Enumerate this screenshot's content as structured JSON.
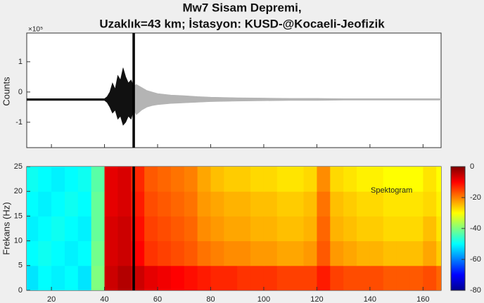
{
  "chart_data": [
    {
      "type": "area",
      "title": "Mw7 Sisam Depremi,",
      "subtitle": "Uzaklık=43 km; İstasyon: KUSD-@Kocaeli-Jeofizik",
      "ylabel": "Counts",
      "y_multiplier_label": "×10⁵",
      "xlim": [
        10.7,
        166.8
      ],
      "xticks": [
        20,
        40,
        60,
        80,
        100,
        120,
        140,
        160
      ],
      "ylim": [
        -1.84,
        1.95
      ],
      "yticks": [
        -1,
        0,
        1
      ],
      "marker_x": 51,
      "series": [
        {
          "color": "#111111",
          "x": [
            10.7,
            40,
            41,
            42,
            43,
            44,
            45,
            46,
            47,
            48,
            49,
            50,
            51
          ],
          "upper": [
            -0.22,
            -0.22,
            -0.15,
            0,
            0.3,
            0.1,
            0.55,
            0.4,
            0.8,
            0.5,
            0.3,
            0.4,
            0.2
          ],
          "lower": [
            -0.28,
            -0.28,
            -0.35,
            -0.5,
            -0.7,
            -0.6,
            -0.9,
            -0.8,
            -1.1,
            -1.0,
            -0.8,
            -0.9,
            -0.6
          ]
        },
        {
          "color": "#b4b4b4",
          "x": [
            51,
            52,
            54,
            56,
            58,
            60,
            65,
            70,
            75,
            80,
            90,
            100,
            110,
            120,
            130,
            140,
            150,
            160,
            166.8
          ],
          "upper": [
            0.2,
            0.25,
            0.15,
            0.05,
            0,
            -0.05,
            -0.1,
            -0.12,
            -0.15,
            -0.17,
            -0.19,
            -0.2,
            -0.21,
            -0.21,
            -0.22,
            -0.22,
            -0.22,
            -0.22,
            -0.22
          ],
          "lower": [
            -0.6,
            -0.75,
            -0.6,
            -0.5,
            -0.45,
            -0.42,
            -0.38,
            -0.36,
            -0.34,
            -0.32,
            -0.3,
            -0.29,
            -0.28,
            -0.28,
            -0.27,
            -0.27,
            -0.27,
            -0.27,
            -0.27
          ]
        }
      ]
    },
    {
      "type": "heatmap",
      "ylabel": "Frekans (Hz)",
      "annotation": "Spektogram",
      "xlim": [
        10.7,
        166.8
      ],
      "xticks": [
        20,
        40,
        60,
        80,
        100,
        120,
        140,
        160
      ],
      "ylim": [
        0,
        25
      ],
      "yticks": [
        0,
        5,
        10,
        15,
        20,
        25
      ],
      "marker_x": 51,
      "x_edges": [
        10,
        15,
        20,
        25,
        30,
        35,
        40,
        45,
        50,
        55,
        60,
        65,
        70,
        75,
        80,
        85,
        90,
        95,
        100,
        105,
        110,
        115,
        120,
        125,
        130,
        135,
        140,
        145,
        150,
        155,
        160,
        165,
        170
      ],
      "y_edges": [
        0,
        5,
        10,
        15,
        20,
        25
      ],
      "z": [
        [
          -52,
          -50,
          -51,
          -50,
          -52,
          -40,
          -6,
          -4,
          -6,
          -8,
          -9,
          -10,
          -11,
          -12,
          -13,
          -13,
          -14,
          -14,
          -14,
          -15,
          -15,
          -15,
          -12,
          -15,
          -16,
          -16,
          -16,
          -17,
          -17,
          -17,
          -16,
          -18
        ],
        [
          -50,
          -49,
          -50,
          -51,
          -50,
          -41,
          -7,
          -6,
          -10,
          -14,
          -15,
          -16,
          -17,
          -19,
          -20,
          -21,
          -21,
          -22,
          -22,
          -23,
          -23,
          -22,
          -17,
          -22,
          -23,
          -24,
          -24,
          -25,
          -25,
          -25,
          -23,
          -26
        ],
        [
          -51,
          -50,
          -49,
          -50,
          -51,
          -42,
          -7,
          -6,
          -11,
          -15,
          -16,
          -17,
          -18,
          -21,
          -22,
          -23,
          -23,
          -24,
          -24,
          -25,
          -25,
          -24,
          -18,
          -24,
          -25,
          -26,
          -26,
          -27,
          -27,
          -27,
          -25,
          -28
        ],
        [
          -50,
          -51,
          -50,
          -49,
          -50,
          -42,
          -8,
          -7,
          -12,
          -16,
          -17,
          -18,
          -19,
          -22,
          -23,
          -24,
          -24,
          -25,
          -25,
          -26,
          -26,
          -25,
          -19,
          -25,
          -26,
          -27,
          -27,
          -28,
          -28,
          -28,
          -27,
          -29
        ],
        [
          -49,
          -50,
          -51,
          -50,
          -49,
          -43,
          -8,
          -7,
          -13,
          -17,
          -18,
          -19,
          -20,
          -23,
          -25,
          -26,
          -26,
          -27,
          -27,
          -28,
          -28,
          -27,
          -21,
          -27,
          -28,
          -29,
          -29,
          -30,
          -30,
          -30,
          -28,
          -30
        ]
      ],
      "clim": [
        -80,
        0
      ],
      "cticks": [
        -80,
        -60,
        -40,
        -20,
        0
      ]
    }
  ]
}
